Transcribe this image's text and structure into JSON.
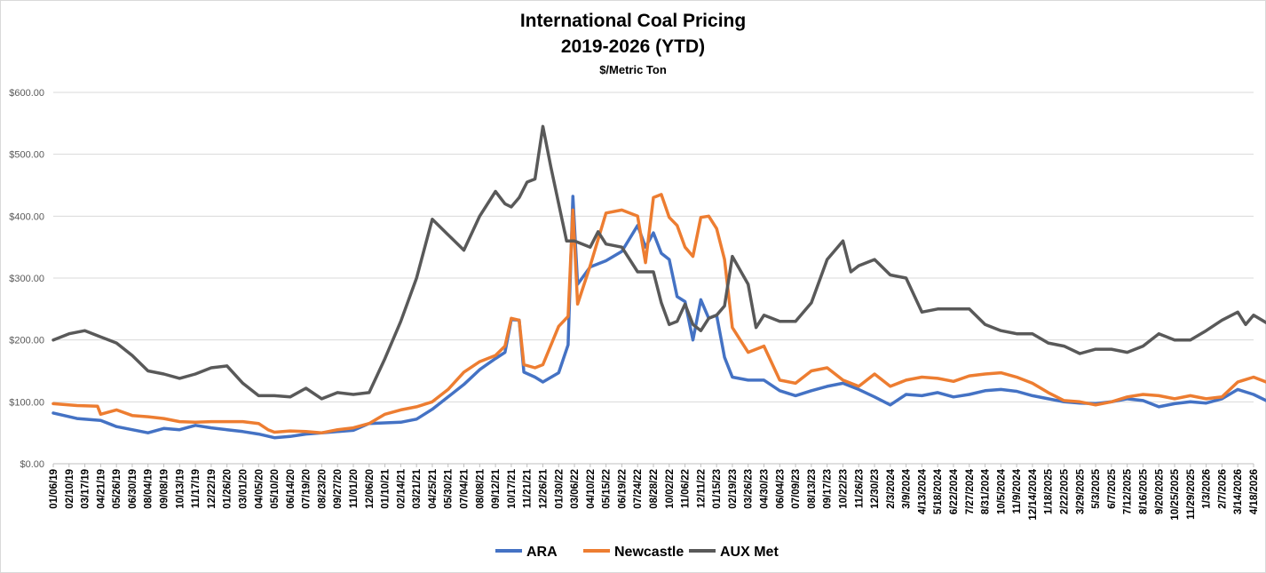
{
  "chart_data": {
    "type": "line",
    "title": "International Coal Pricing",
    "subtitle": "2019-2026 (YTD)",
    "unit_label": "$/Metric Ton",
    "xlabel": "",
    "ylabel": "",
    "ylim": [
      0,
      600
    ],
    "grid": true,
    "legend_position": "bottom",
    "y_ticks": [
      "$0.00",
      "$100.00",
      "$200.00",
      "$300.00",
      "$400.00",
      "$500.00",
      "$600.00"
    ],
    "x_tick_labels": [
      "01/06/19",
      "02/10/19",
      "03/17/19",
      "04/21/19",
      "05/26/19",
      "06/30/19",
      "08/04/19",
      "09/08/19",
      "10/13/19",
      "11/17/19",
      "12/22/19",
      "01/26/20",
      "03/01/20",
      "04/05/20",
      "05/10/20",
      "06/14/20",
      "07/19/20",
      "08/23/20",
      "09/27/20",
      "11/01/20",
      "12/06/20",
      "01/10/21",
      "02/14/21",
      "03/21/21",
      "04/25/21",
      "05/30/21",
      "07/04/21",
      "08/08/21",
      "09/12/21",
      "10/17/21",
      "11/21/21",
      "12/26/21",
      "01/30/22",
      "03/06/22",
      "04/10/22",
      "05/15/22",
      "06/19/22",
      "07/24/22",
      "08/28/22",
      "10/02/22",
      "11/06/22",
      "12/11/22",
      "01/15/23",
      "02/19/23",
      "03/26/23",
      "04/30/23",
      "06/04/23",
      "07/09/23",
      "08/13/23",
      "09/17/23",
      "10/22/23",
      "11/26/23",
      "12/30/23",
      "2/3/2024",
      "3/9/2024",
      "4/13/2024",
      "5/18/2024",
      "6/22/2024",
      "7/27/2024",
      "8/31/2024",
      "10/5/2024",
      "11/9/2024",
      "12/14/2024",
      "1/18/2025",
      "2/22/2025",
      "3/29/2025",
      "5/3/2025",
      "6/7/2025",
      "7/12/2025",
      "8/16/2025",
      "9/20/2025",
      "10/25/2025",
      "11/29/2025",
      "1/3/2026",
      "2/7/2026",
      "3/14/2026",
      "4/18/2026"
    ],
    "series": [
      {
        "name": "ARA",
        "color": "#4472C4",
        "values": [
          [
            0,
            82
          ],
          [
            1.5,
            73
          ],
          [
            3,
            70
          ],
          [
            4,
            60
          ],
          [
            6,
            50
          ],
          [
            7,
            57
          ],
          [
            8,
            55
          ],
          [
            9,
            62
          ],
          [
            10,
            58
          ],
          [
            11,
            55
          ],
          [
            12,
            52
          ],
          [
            13,
            48
          ],
          [
            14,
            42
          ],
          [
            15,
            44
          ],
          [
            16,
            48
          ],
          [
            17,
            50
          ],
          [
            18,
            52
          ],
          [
            19,
            54
          ],
          [
            20,
            65
          ],
          [
            21,
            66
          ],
          [
            22,
            67
          ],
          [
            23,
            72
          ],
          [
            24,
            88
          ],
          [
            25,
            108
          ],
          [
            26,
            128
          ],
          [
            27,
            152
          ],
          [
            28,
            170
          ],
          [
            28.6,
            180
          ],
          [
            29,
            233
          ],
          [
            29.5,
            232
          ],
          [
            29.8,
            148
          ],
          [
            30.5,
            140
          ],
          [
            31,
            132
          ],
          [
            32,
            147
          ],
          [
            32.6,
            192
          ],
          [
            32.9,
            432
          ],
          [
            33.2,
            290
          ],
          [
            34,
            318
          ],
          [
            35,
            328
          ],
          [
            36,
            343
          ],
          [
            37,
            385
          ],
          [
            37.5,
            350
          ],
          [
            38,
            373
          ],
          [
            38.5,
            340
          ],
          [
            39,
            330
          ],
          [
            39.5,
            270
          ],
          [
            40,
            262
          ],
          [
            40.5,
            200
          ],
          [
            41,
            265
          ],
          [
            41.5,
            235
          ],
          [
            42,
            240
          ],
          [
            42.5,
            172
          ],
          [
            43,
            140
          ],
          [
            44,
            135
          ],
          [
            45,
            135
          ],
          [
            46,
            118
          ],
          [
            47,
            110
          ],
          [
            48,
            118
          ],
          [
            49,
            125
          ],
          [
            50,
            130
          ],
          [
            51,
            120
          ],
          [
            52,
            108
          ],
          [
            53,
            95
          ],
          [
            54,
            112
          ],
          [
            55,
            110
          ],
          [
            56,
            115
          ],
          [
            57,
            108
          ],
          [
            58,
            112
          ],
          [
            59,
            118
          ],
          [
            60,
            120
          ],
          [
            61,
            117
          ],
          [
            62,
            110
          ],
          [
            63,
            105
          ],
          [
            64,
            100
          ],
          [
            65,
            98
          ],
          [
            66,
            97
          ],
          [
            67,
            100
          ],
          [
            68,
            105
          ],
          [
            69,
            102
          ],
          [
            70,
            92
          ],
          [
            71,
            97
          ],
          [
            72,
            100
          ],
          [
            73,
            98
          ],
          [
            74,
            105
          ],
          [
            75,
            120
          ],
          [
            76,
            112
          ],
          [
            76.8,
            102
          ]
        ]
      },
      {
        "name": "Newcastle",
        "color": "#ED7D31",
        "values": [
          [
            0,
            97
          ],
          [
            1.5,
            94
          ],
          [
            2.8,
            93
          ],
          [
            3,
            80
          ],
          [
            4,
            87
          ],
          [
            5,
            78
          ],
          [
            6,
            76
          ],
          [
            7,
            73
          ],
          [
            8,
            68
          ],
          [
            9,
            67
          ],
          [
            10,
            68
          ],
          [
            11,
            68
          ],
          [
            12,
            68
          ],
          [
            13,
            65
          ],
          [
            13.6,
            55
          ],
          [
            14,
            51
          ],
          [
            15,
            53
          ],
          [
            16,
            52
          ],
          [
            17,
            50
          ],
          [
            18,
            55
          ],
          [
            19,
            58
          ],
          [
            20,
            65
          ],
          [
            21,
            80
          ],
          [
            22,
            87
          ],
          [
            23,
            92
          ],
          [
            24,
            100
          ],
          [
            25,
            120
          ],
          [
            26,
            148
          ],
          [
            27,
            165
          ],
          [
            28,
            175
          ],
          [
            28.6,
            190
          ],
          [
            29,
            235
          ],
          [
            29.5,
            232
          ],
          [
            29.8,
            160
          ],
          [
            30.5,
            155
          ],
          [
            31,
            160
          ],
          [
            32,
            222
          ],
          [
            32.6,
            238
          ],
          [
            32.9,
            410
          ],
          [
            33.2,
            258
          ],
          [
            34,
            320
          ],
          [
            35,
            405
          ],
          [
            36,
            410
          ],
          [
            37,
            400
          ],
          [
            37.5,
            325
          ],
          [
            38,
            430
          ],
          [
            38.5,
            435
          ],
          [
            39,
            398
          ],
          [
            39.5,
            385
          ],
          [
            40,
            350
          ],
          [
            40.5,
            335
          ],
          [
            41,
            398
          ],
          [
            41.5,
            400
          ],
          [
            42,
            380
          ],
          [
            42.5,
            330
          ],
          [
            43,
            220
          ],
          [
            44,
            180
          ],
          [
            45,
            190
          ],
          [
            46,
            135
          ],
          [
            47,
            130
          ],
          [
            48,
            150
          ],
          [
            49,
            155
          ],
          [
            50,
            135
          ],
          [
            51,
            125
          ],
          [
            52,
            145
          ],
          [
            53,
            125
          ],
          [
            54,
            135
          ],
          [
            55,
            140
          ],
          [
            56,
            138
          ],
          [
            57,
            133
          ],
          [
            58,
            142
          ],
          [
            59,
            145
          ],
          [
            60,
            147
          ],
          [
            61,
            140
          ],
          [
            62,
            130
          ],
          [
            63,
            115
          ],
          [
            64,
            102
          ],
          [
            65,
            100
          ],
          [
            66,
            95
          ],
          [
            67,
            100
          ],
          [
            68,
            108
          ],
          [
            69,
            112
          ],
          [
            70,
            110
          ],
          [
            71,
            105
          ],
          [
            72,
            110
          ],
          [
            73,
            105
          ],
          [
            74,
            108
          ],
          [
            75,
            132
          ],
          [
            76,
            140
          ],
          [
            76.8,
            132
          ]
        ]
      },
      {
        "name": "AUX Met",
        "color": "#595959",
        "values": [
          [
            0,
            200
          ],
          [
            1,
            210
          ],
          [
            2,
            215
          ],
          [
            3,
            205
          ],
          [
            4,
            195
          ],
          [
            5,
            175
          ],
          [
            6,
            150
          ],
          [
            7,
            145
          ],
          [
            8,
            138
          ],
          [
            9,
            145
          ],
          [
            10,
            155
          ],
          [
            11,
            158
          ],
          [
            12,
            130
          ],
          [
            13,
            110
          ],
          [
            14,
            110
          ],
          [
            15,
            108
          ],
          [
            16,
            122
          ],
          [
            17,
            105
          ],
          [
            18,
            115
          ],
          [
            19,
            112
          ],
          [
            20,
            115
          ],
          [
            21,
            170
          ],
          [
            22,
            230
          ],
          [
            23,
            300
          ],
          [
            24,
            395
          ],
          [
            25,
            370
          ],
          [
            26,
            345
          ],
          [
            27,
            400
          ],
          [
            28,
            440
          ],
          [
            28.6,
            420
          ],
          [
            29,
            415
          ],
          [
            29.5,
            430
          ],
          [
            30,
            455
          ],
          [
            30.5,
            460
          ],
          [
            31,
            545
          ],
          [
            31.5,
            480
          ],
          [
            32,
            420
          ],
          [
            32.5,
            360
          ],
          [
            33,
            360
          ],
          [
            34,
            350
          ],
          [
            34.5,
            375
          ],
          [
            35,
            355
          ],
          [
            36,
            350
          ],
          [
            37,
            310
          ],
          [
            38,
            310
          ],
          [
            38.5,
            260
          ],
          [
            39,
            225
          ],
          [
            39.5,
            230
          ],
          [
            40,
            258
          ],
          [
            40.5,
            225
          ],
          [
            41,
            215
          ],
          [
            41.5,
            235
          ],
          [
            42,
            240
          ],
          [
            42.5,
            255
          ],
          [
            43,
            335
          ],
          [
            44,
            290
          ],
          [
            44.5,
            220
          ],
          [
            45,
            240
          ],
          [
            46,
            230
          ],
          [
            47,
            230
          ],
          [
            48,
            260
          ],
          [
            49,
            330
          ],
          [
            50,
            360
          ],
          [
            50.5,
            310
          ],
          [
            51,
            320
          ],
          [
            52,
            330
          ],
          [
            53,
            305
          ],
          [
            54,
            300
          ],
          [
            55,
            245
          ],
          [
            56,
            250
          ],
          [
            57,
            250
          ],
          [
            58,
            250
          ],
          [
            59,
            225
          ],
          [
            60,
            215
          ],
          [
            61,
            210
          ],
          [
            62,
            210
          ],
          [
            63,
            195
          ],
          [
            64,
            190
          ],
          [
            65,
            178
          ],
          [
            66,
            185
          ],
          [
            67,
            185
          ],
          [
            68,
            180
          ],
          [
            69,
            190
          ],
          [
            70,
            210
          ],
          [
            71,
            200
          ],
          [
            72,
            200
          ],
          [
            73,
            215
          ],
          [
            74,
            232
          ],
          [
            75,
            245
          ],
          [
            75.5,
            225
          ],
          [
            76,
            240
          ],
          [
            76.8,
            228
          ]
        ]
      }
    ]
  }
}
